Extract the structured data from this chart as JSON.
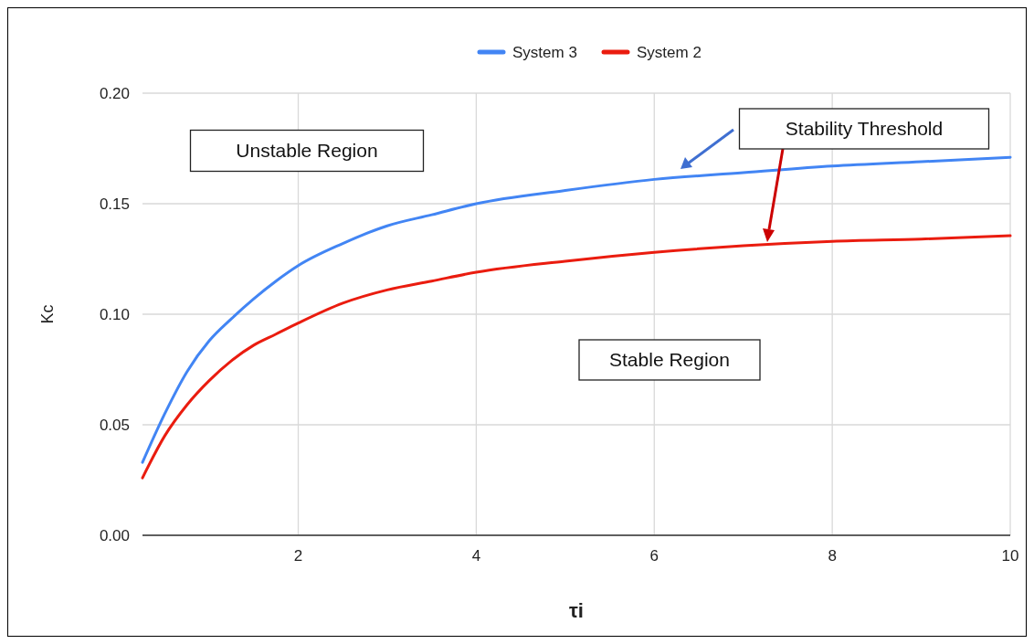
{
  "chart_data": {
    "type": "line",
    "xlabel": "τi",
    "ylabel": "Kc",
    "xlim": [
      0.25,
      10
    ],
    "xticks": [
      2,
      4,
      6,
      8,
      10
    ],
    "ylim": [
      0,
      0.2
    ],
    "yticks": [
      {
        "value": 0,
        "label": "0.00"
      },
      {
        "value": 0.05,
        "label": "0.05"
      },
      {
        "value": 0.1,
        "label": "0.10"
      },
      {
        "value": 0.15,
        "label": "0.15"
      },
      {
        "value": 0.2,
        "label": "0.20"
      }
    ],
    "grid": true,
    "legend": "top",
    "marker": "none",
    "line_style": "solid",
    "annotations": [
      "Unstable Region",
      "Stable Region",
      "Stability Threshold"
    ],
    "series": [
      {
        "name": "System 3",
        "color": "#4285f4",
        "x": [
          0.25,
          0.5,
          0.75,
          1,
          1.25,
          1.5,
          1.75,
          2,
          2.5,
          3,
          3.5,
          4,
          5,
          6,
          7,
          8,
          9,
          10
        ],
        "values": [
          0.033,
          0.055,
          0.074,
          0.088,
          0.098,
          0.107,
          0.115,
          0.122,
          0.132,
          0.14,
          0.145,
          0.15,
          0.156,
          0.161,
          0.164,
          0.167,
          0.169,
          0.171
        ]
      },
      {
        "name": "System 2",
        "color": "#ea1c0f",
        "x": [
          0.25,
          0.5,
          0.75,
          1,
          1.25,
          1.5,
          1.75,
          2,
          2.5,
          3,
          3.5,
          4,
          5,
          6,
          7,
          8,
          9,
          10
        ],
        "values": [
          0.026,
          0.045,
          0.059,
          0.07,
          0.079,
          0.086,
          0.091,
          0.096,
          0.105,
          0.111,
          0.115,
          0.119,
          0.124,
          0.128,
          0.131,
          0.133,
          0.134,
          0.1355
        ]
      }
    ]
  }
}
